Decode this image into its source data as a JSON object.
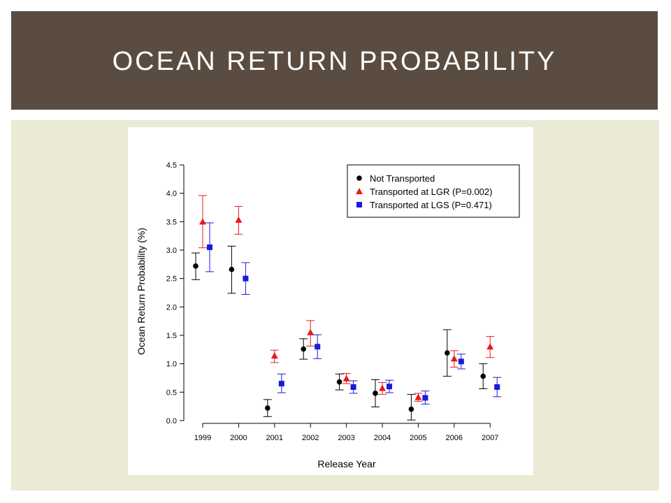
{
  "slide": {
    "title": "OCEAN RETURN PROBABILITY",
    "colors": {
      "header": "#5a4c40",
      "panel": "#ebead4"
    }
  },
  "chart_data": {
    "type": "scatter",
    "ylabel": "Ocean Return Probability (%)",
    "xlabel": "Release Year",
    "categories": [
      "1999",
      "2000",
      "2001",
      "2002",
      "2003",
      "2004",
      "2005",
      "2006",
      "2007"
    ],
    "ylim": [
      0,
      4.5
    ],
    "yticks": [
      "0.0",
      "0.5",
      "1.0",
      "1.5",
      "2.0",
      "2.5",
      "3.0",
      "3.5",
      "4.0",
      "4.5"
    ],
    "legend_position": "top-right",
    "grid": false,
    "series": [
      {
        "name": "Not Transported",
        "marker": "circle",
        "color": "#000000",
        "values": [
          2.72,
          2.66,
          0.22,
          1.26,
          0.68,
          0.48,
          0.2,
          1.19,
          0.78
        ],
        "lower": [
          2.48,
          2.24,
          0.07,
          1.08,
          0.54,
          0.24,
          0.01,
          0.78,
          0.56
        ],
        "upper": [
          2.95,
          3.07,
          0.37,
          1.44,
          0.82,
          0.72,
          0.46,
          1.6,
          1.0
        ]
      },
      {
        "name": "Transported at LGR (P=0.002)",
        "marker": "triangle",
        "color": "#e8191b",
        "values": [
          3.5,
          3.53,
          1.14,
          1.55,
          0.74,
          0.57,
          0.41,
          1.09,
          1.3
        ],
        "lower": [
          3.04,
          3.28,
          1.02,
          1.31,
          0.65,
          0.46,
          0.34,
          0.94,
          1.11
        ],
        "upper": [
          3.96,
          3.77,
          1.24,
          1.76,
          0.83,
          0.67,
          0.48,
          1.23,
          1.48
        ]
      },
      {
        "name": "Transported at LGS (P=0.471)",
        "marker": "square",
        "color": "#1a1adc",
        "values": [
          3.05,
          2.5,
          0.65,
          1.3,
          0.59,
          0.6,
          0.4,
          1.04,
          0.59
        ],
        "lower": [
          2.62,
          2.22,
          0.49,
          1.09,
          0.48,
          0.49,
          0.29,
          0.91,
          0.42
        ],
        "upper": [
          3.48,
          2.78,
          0.82,
          1.51,
          0.7,
          0.71,
          0.52,
          1.17,
          0.76
        ]
      }
    ]
  }
}
